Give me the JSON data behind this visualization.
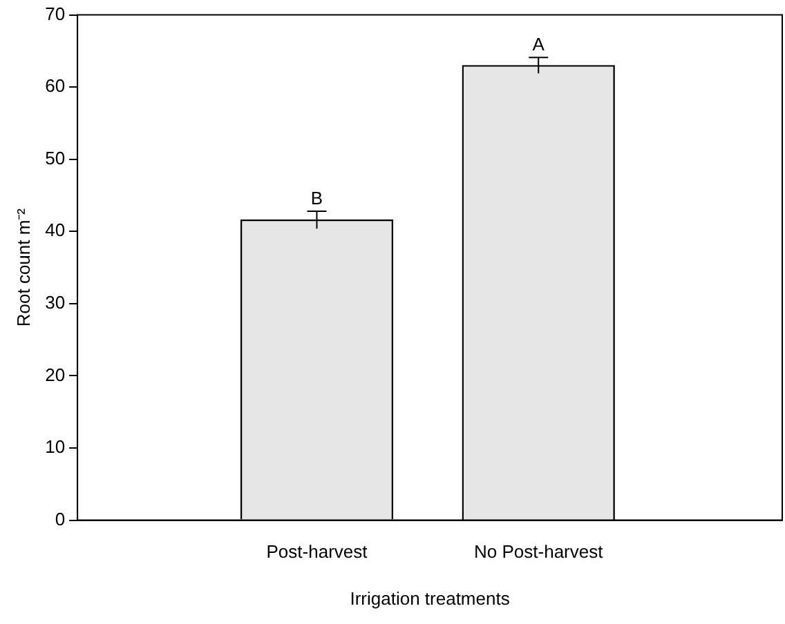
{
  "chart_data": {
    "type": "bar",
    "xlabel": "Irrigation treatments",
    "ylabel": "Root count m⁻²",
    "categories": [
      "Post-harvest",
      "No Post-harvest"
    ],
    "values": [
      41.6,
      63
    ],
    "errors": [
      1.2,
      1.1
    ],
    "color": "#e6e6e6",
    "ylim": [
      0,
      70
    ],
    "yticks": [
      0,
      10,
      20,
      30,
      40,
      50,
      60,
      70
    ],
    "annotations": [
      "B",
      "A"
    ]
  }
}
